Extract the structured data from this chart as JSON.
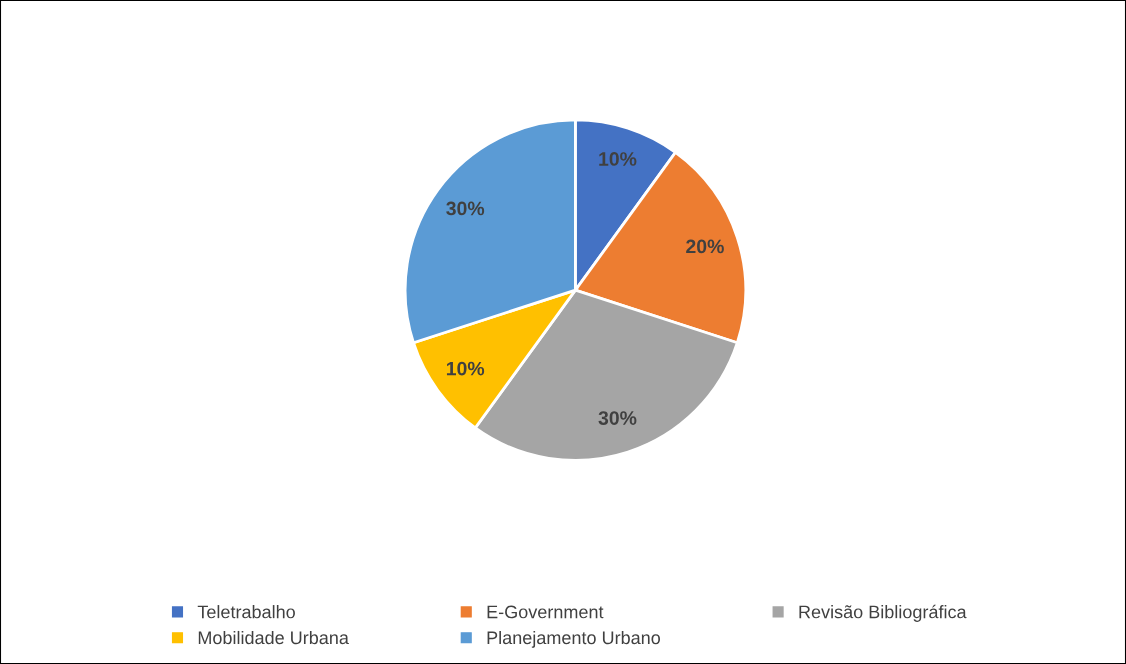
{
  "chart_data": {
    "type": "pie",
    "categories": [
      "Teletrabalho",
      "E-Government",
      "Revisão Bibliográfica",
      "Mobilidade Urbana",
      "Planejamento Urbano"
    ],
    "values": [
      10,
      20,
      30,
      10,
      30
    ],
    "colors": [
      "#4472c4",
      "#ed7d31",
      "#a5a5a5",
      "#ffc000",
      "#5b9bd5"
    ],
    "value_labels": [
      "10%",
      "20%",
      "30%",
      "10%",
      "30%"
    ],
    "legend": "bottom"
  }
}
